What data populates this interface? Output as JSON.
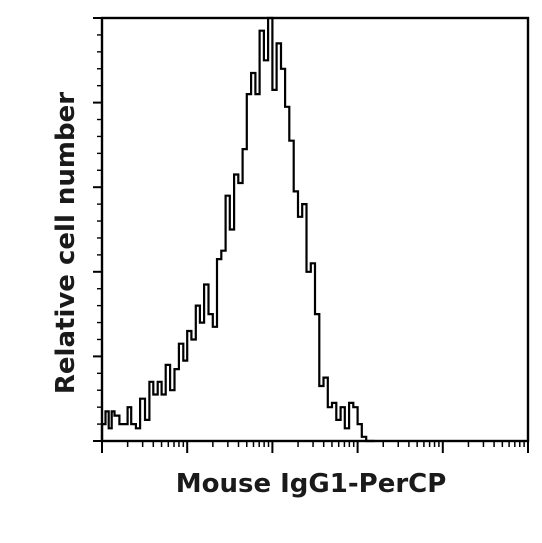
{
  "chart_data": {
    "type": "histogram",
    "title": "",
    "xlabel": "Mouse IgG1-PerCP",
    "ylabel": "Relative cell number",
    "x_scale": "log",
    "xlim": [
      0.1,
      10000
    ],
    "ylim": [
      0,
      100
    ],
    "grid": false,
    "legend": "none",
    "line_color": "#000000",
    "series": [
      {
        "x": [
          0.1,
          0.11,
          0.12,
          0.13,
          0.14,
          0.16,
          0.18,
          0.2,
          0.22,
          0.25,
          0.28,
          0.32,
          0.36,
          0.4,
          0.45,
          0.5,
          0.56,
          0.63,
          0.71,
          0.8,
          0.9,
          1.0,
          1.12,
          1.26,
          1.41,
          1.58,
          1.78,
          2.0,
          2.24,
          2.51,
          2.82,
          3.16,
          3.55,
          3.98,
          4.47,
          5.01,
          5.62,
          6.31,
          7.08,
          7.94,
          8.91,
          10.0,
          11.2,
          12.6,
          14.1,
          15.8,
          17.8,
          20.0,
          22.4,
          25.1,
          28.2,
          31.6,
          35.5,
          39.8,
          44.7,
          50.1,
          56.2,
          63.1,
          70.8,
          79.4,
          89.1,
          100,
          112,
          126,
          141
        ],
        "y": [
          4,
          7,
          3,
          7,
          6,
          4,
          4,
          8,
          4,
          3,
          10,
          5,
          14,
          11,
          14,
          11,
          18,
          12,
          17,
          23,
          19,
          26,
          24,
          32,
          28,
          37,
          30,
          27,
          43,
          45,
          58,
          50,
          63,
          61,
          69,
          82,
          87,
          82,
          97,
          90,
          100,
          83,
          94,
          88,
          79,
          71,
          59,
          53,
          56,
          40,
          42,
          30,
          13,
          15,
          8,
          9,
          5,
          8,
          3,
          9,
          8,
          4,
          1,
          0,
          0
        ]
      }
    ]
  }
}
